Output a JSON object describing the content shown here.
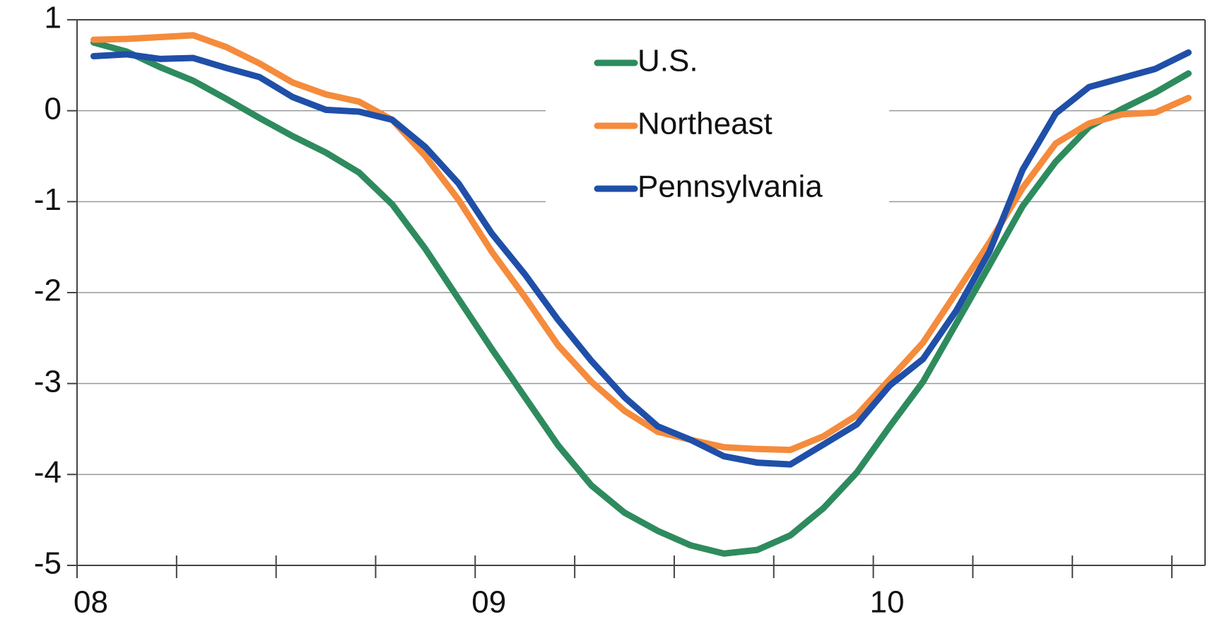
{
  "chart_data": {
    "type": "line",
    "x": [
      2008.0417,
      2008.125,
      2008.2083,
      2008.2917,
      2008.375,
      2008.4583,
      2008.5417,
      2008.625,
      2008.7083,
      2008.7917,
      2008.875,
      2008.9583,
      2009.0417,
      2009.125,
      2009.2083,
      2009.2917,
      2009.375,
      2009.4583,
      2009.5417,
      2009.625,
      2009.7083,
      2009.7917,
      2009.875,
      2009.9583,
      2010.0417,
      2010.125,
      2010.2083,
      2010.2917,
      2010.375,
      2010.4583,
      2010.5417,
      2010.625,
      2010.7083,
      2010.7917
    ],
    "series": [
      {
        "name": "U.S.",
        "color": "#2e8b5e",
        "values": [
          0.75,
          0.65,
          0.48,
          0.33,
          0.13,
          -0.08,
          -0.28,
          -0.46,
          -0.68,
          -1.03,
          -1.52,
          -2.07,
          -2.62,
          -3.15,
          -3.68,
          -4.12,
          -4.42,
          -4.62,
          -4.78,
          -4.87,
          -4.83,
          -4.67,
          -4.37,
          -3.98,
          -3.47,
          -2.98,
          -2.34,
          -1.7,
          -1.05,
          -0.56,
          -0.18,
          0.02,
          0.2,
          0.41
        ]
      },
      {
        "name": "Northeast",
        "color": "#f58b3c",
        "values": [
          0.78,
          0.79,
          0.81,
          0.83,
          0.7,
          0.52,
          0.31,
          0.18,
          0.1,
          -0.1,
          -0.5,
          -0.98,
          -1.55,
          -2.05,
          -2.58,
          -2.98,
          -3.3,
          -3.53,
          -3.62,
          -3.7,
          -3.72,
          -3.73,
          -3.58,
          -3.35,
          -2.95,
          -2.55,
          -2.0,
          -1.45,
          -0.85,
          -0.36,
          -0.14,
          -0.04,
          -0.02,
          0.14
        ]
      },
      {
        "name": "Pennsylvania",
        "color": "#1f4fa8",
        "values": [
          0.6,
          0.62,
          0.57,
          0.58,
          0.47,
          0.37,
          0.15,
          0.01,
          -0.01,
          -0.1,
          -0.4,
          -0.8,
          -1.35,
          -1.8,
          -2.3,
          -2.75,
          -3.15,
          -3.47,
          -3.62,
          -3.8,
          -3.87,
          -3.89,
          -3.67,
          -3.45,
          -3.02,
          -2.73,
          -2.2,
          -1.55,
          -0.65,
          -0.03,
          0.26,
          0.36,
          0.46,
          0.64
        ]
      }
    ],
    "xlim": [
      2008,
      2010.8333
    ],
    "xticks": [
      {
        "value": 2008,
        "label": "08"
      },
      {
        "value": 2009,
        "label": "09"
      },
      {
        "value": 2010,
        "label": "10"
      }
    ],
    "xminor_ticks": [
      2008.25,
      2008.5,
      2008.75,
      2009.25,
      2009.5,
      2009.75,
      2010.25,
      2010.5,
      2010.75
    ],
    "ylim": [
      -5,
      1
    ],
    "yticks": [
      -5,
      -4,
      -3,
      -2,
      -1,
      0,
      1
    ],
    "grid": true
  }
}
